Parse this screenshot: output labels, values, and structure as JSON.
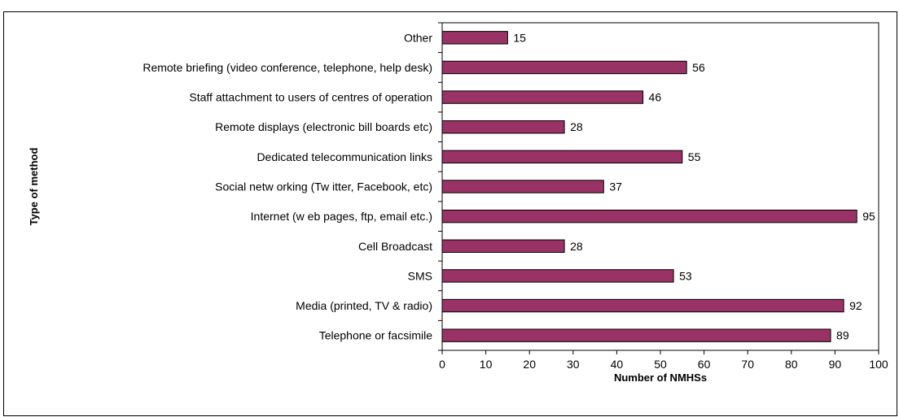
{
  "chart_data": {
    "type": "bar",
    "orientation": "horizontal",
    "categories": [
      "Telephone or facsimile",
      "Media (printed, TV & radio)",
      "SMS",
      "Cell Broadcast",
      "Internet (w eb pages, ftp, email etc.)",
      "Social netw orking (Tw itter, Facebook, etc)",
      "Dedicated telecommunication links",
      "Remote displays (electronic bill boards etc)",
      "Staff attachment to users of centres of operation",
      "Remote briefing (video conference, telephone, help desk)",
      "Other"
    ],
    "values": [
      89,
      92,
      53,
      28,
      95,
      37,
      55,
      28,
      46,
      56,
      15
    ],
    "xlabel": "Number of NMHSs",
    "ylabel": "Type of method",
    "xlim": [
      0,
      100
    ],
    "xticks": [
      "0",
      "10",
      "20",
      "30",
      "40",
      "50",
      "60",
      "70",
      "80",
      "90",
      "100"
    ],
    "grid": false,
    "legend": "none",
    "bar_color": "#993366",
    "data_labels": true
  }
}
